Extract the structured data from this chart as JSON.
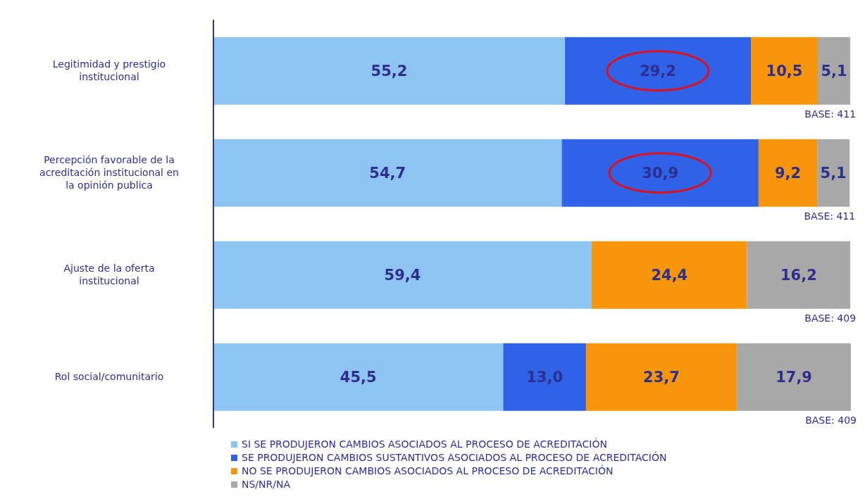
{
  "chart_data": {
    "type": "bar",
    "orientation": "horizontal",
    "stacked": true,
    "categories": [
      "Legitimidad y prestigio institucional",
      "Percepción favorable  de la acreditación institucional en la opinión publica",
      "Ajuste de la oferta institucional",
      "Rol social/comunitario"
    ],
    "series": [
      {
        "name": "SI SE PRODUJERON CAMBIOS ASOCIADOS AL PROCESO DE ACREDITACIÓN",
        "color": "#8ec4f2",
        "values": [
          55.2,
          54.7,
          59.4,
          45.5
        ],
        "value_labels": [
          "55,2",
          "54,7",
          "59,4",
          "45,5"
        ]
      },
      {
        "name": "SE PRODUJERON CAMBIOS SUSTANTIVOS ASOCIADOS AL PROCESO DE ACREDITACIÓN",
        "color": "#2f62e6",
        "values": [
          29.2,
          30.9,
          null,
          13.0
        ],
        "value_labels": [
          "29,2",
          "30,9",
          null,
          "13,0"
        ]
      },
      {
        "name": "NO SE PRODUJERON CAMBIOS ASOCIADOS AL PROCESO DE ACREDITACIÓN",
        "color": "#f7960a",
        "values": [
          10.5,
          9.2,
          24.4,
          23.7
        ],
        "value_labels": [
          "10,5",
          "9,2",
          "24,4",
          "23,7"
        ]
      },
      {
        "name": "NS/NR/NA",
        "color": "#a8a8a8",
        "values": [
          5.1,
          5.1,
          16.2,
          17.9
        ],
        "value_labels": [
          "5,1",
          "5,1",
          "16,2",
          "17,9"
        ]
      }
    ],
    "annotations": [
      "BASE: 411",
      "BASE: 411",
      "BASE: 409",
      "BASE: 409"
    ],
    "legend": "bottom",
    "grid": false
  }
}
